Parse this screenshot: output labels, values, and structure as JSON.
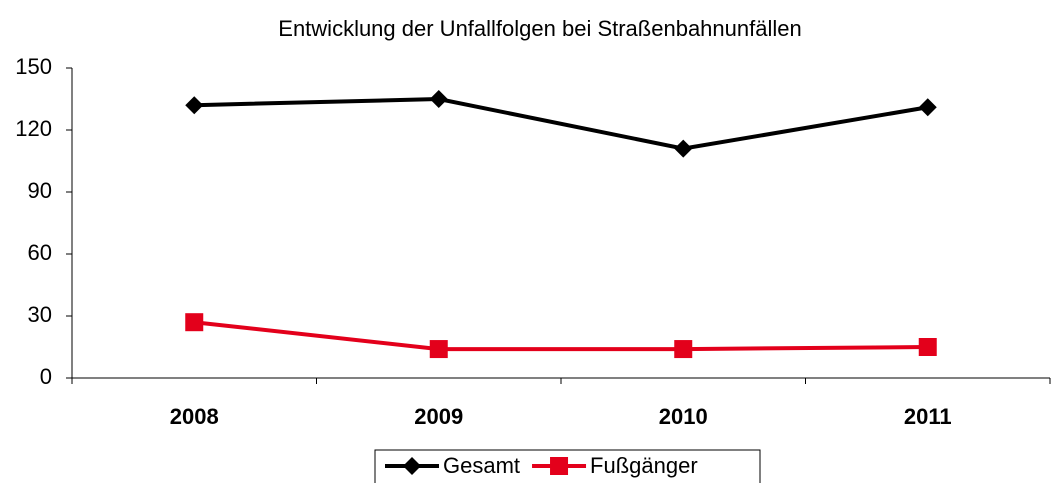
{
  "chart_data": {
    "type": "line",
    "title": "Entwicklung der Unfallfolgen bei Straßenbahnunfällen",
    "categories": [
      "2008",
      "2009",
      "2010",
      "2011"
    ],
    "series": [
      {
        "name": "Gesamt",
        "color": "#000000",
        "marker": "diamond",
        "values": [
          132,
          135,
          111,
          131
        ]
      },
      {
        "name": "Fußgänger",
        "color": "#e3001b",
        "marker": "square",
        "values": [
          27,
          14,
          14,
          15
        ]
      }
    ],
    "ylim": [
      0,
      150
    ],
    "yticks": [
      0,
      30,
      60,
      90,
      120,
      150
    ],
    "grid": false,
    "legend": "bottom"
  }
}
